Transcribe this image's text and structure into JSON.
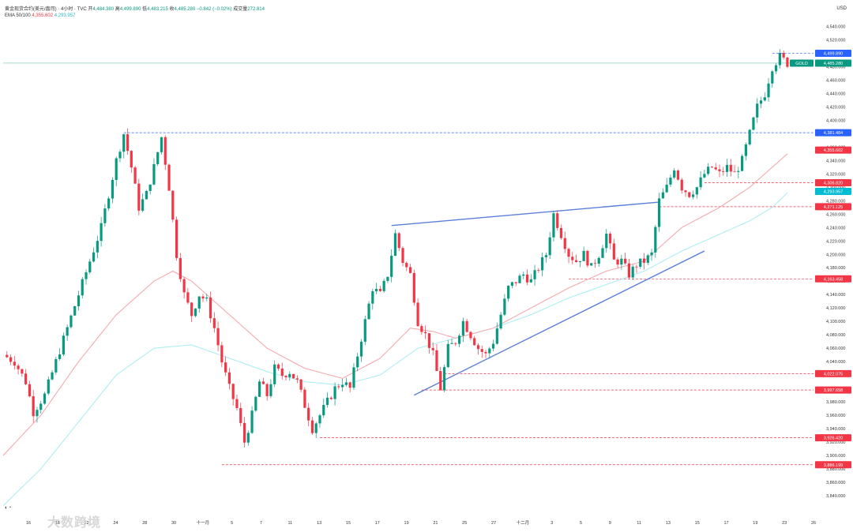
{
  "header": {
    "symbol": "黄金现货合约(美元/盎司) · 4小时 · TVC",
    "open_label": "开",
    "open": "4,484.380",
    "high_label": "高",
    "high": "4,499.890",
    "low_label": "低",
    "low": "4,483.215",
    "close_label": "收",
    "close": "4,485.280",
    "change": "−0.842 (−0.02%)",
    "volume_label": "成交量",
    "volume": "272.814",
    "ema_label": "EMA 50/100",
    "ema50": "4,355.602",
    "ema100": "4,293.957"
  },
  "axis_currency": "USD",
  "watermark": "大数跨境",
  "chart_data": {
    "type": "candlestick",
    "timeframe": "4h",
    "ylim": [
      3820,
      4550
    ],
    "x_tick_labels": [
      "16",
      "18",
      "22",
      "24",
      "28",
      "30",
      "十一月",
      "5",
      "7",
      "11",
      "13",
      "15",
      "17",
      "19",
      "21",
      "25",
      "27",
      "十二月",
      "3",
      "5",
      "9",
      "11",
      "13",
      "15",
      "17",
      "19",
      "23",
      "26"
    ],
    "y_tick_labels": [
      "4,540.000",
      "4,520.000",
      "4,500.000",
      "4,480.000",
      "4,460.000",
      "4,440.000",
      "4,420.000",
      "4,400.000",
      "4,380.000",
      "4,360.000",
      "4,340.000",
      "4,320.000",
      "4,300.000",
      "4,280.000",
      "4,260.000",
      "4,240.000",
      "4,220.000",
      "4,200.000",
      "4,180.000",
      "4,160.000",
      "4,140.000",
      "4,120.000",
      "4,100.000",
      "4,080.000",
      "4,060.000",
      "4,040.000",
      "4,020.000",
      "4,000.000",
      "3,980.000",
      "3,960.000",
      "3,940.000",
      "3,920.000",
      "3,900.000",
      "3,880.000",
      "3,860.000",
      "3,840.000"
    ],
    "close_path": [
      [
        0,
        4050
      ],
      [
        3,
        4040
      ],
      [
        6,
        4010
      ],
      [
        8,
        3965
      ],
      [
        11,
        3990
      ],
      [
        14,
        4040
      ],
      [
        17,
        4090
      ],
      [
        20,
        4140
      ],
      [
        23,
        4190
      ],
      [
        26,
        4240
      ],
      [
        28,
        4290
      ],
      [
        30,
        4340
      ],
      [
        32,
        4380
      ],
      [
        34,
        4330
      ],
      [
        36,
        4270
      ],
      [
        38,
        4290
      ],
      [
        40,
        4330
      ],
      [
        42,
        4375
      ],
      [
        44,
        4300
      ],
      [
        46,
        4200
      ],
      [
        48,
        4140
      ],
      [
        50,
        4110
      ],
      [
        52,
        4140
      ],
      [
        54,
        4130
      ],
      [
        56,
        4090
      ],
      [
        58,
        4040
      ],
      [
        60,
        4000
      ],
      [
        62,
        3970
      ],
      [
        64,
        3920
      ],
      [
        66,
        3960
      ],
      [
        68,
        4010
      ],
      [
        70,
        3990
      ],
      [
        72,
        4030
      ],
      [
        74,
        4020
      ],
      [
        76,
        4025
      ],
      [
        78,
        4010
      ],
      [
        80,
        3975
      ],
      [
        82,
        3940
      ],
      [
        84,
        3960
      ],
      [
        86,
        3980
      ],
      [
        88,
        4000
      ],
      [
        90,
        4010
      ],
      [
        92,
        4000
      ],
      [
        94,
        4050
      ],
      [
        96,
        4100
      ],
      [
        98,
        4150
      ],
      [
        100,
        4140
      ],
      [
        102,
        4170
      ],
      [
        104,
        4230
      ],
      [
        106,
        4190
      ],
      [
        108,
        4170
      ],
      [
        110,
        4100
      ],
      [
        112,
        4080
      ],
      [
        114,
        4050
      ],
      [
        116,
        4000
      ],
      [
        118,
        4060
      ],
      [
        120,
        4070
      ],
      [
        122,
        4100
      ],
      [
        124,
        4080
      ],
      [
        126,
        4060
      ],
      [
        128,
        4050
      ],
      [
        130,
        4070
      ],
      [
        132,
        4110
      ],
      [
        134,
        4150
      ],
      [
        136,
        4160
      ],
      [
        138,
        4170
      ],
      [
        140,
        4160
      ],
      [
        142,
        4180
      ],
      [
        144,
        4200
      ],
      [
        146,
        4260
      ],
      [
        148,
        4230
      ],
      [
        150,
        4200
      ],
      [
        152,
        4190
      ],
      [
        154,
        4200
      ],
      [
        156,
        4180
      ],
      [
        158,
        4200
      ],
      [
        160,
        4230
      ],
      [
        162,
        4190
      ],
      [
        164,
        4190
      ],
      [
        166,
        4170
      ],
      [
        168,
        4185
      ],
      [
        170,
        4190
      ],
      [
        172,
        4200
      ],
      [
        174,
        4280
      ],
      [
        176,
        4300
      ],
      [
        178,
        4330
      ],
      [
        180,
        4300
      ],
      [
        182,
        4290
      ],
      [
        184,
        4300
      ],
      [
        186,
        4320
      ],
      [
        188,
        4330
      ],
      [
        190,
        4320
      ],
      [
        192,
        4330
      ],
      [
        194,
        4320
      ],
      [
        196,
        4340
      ],
      [
        198,
        4380
      ],
      [
        200,
        4420
      ],
      [
        202,
        4440
      ],
      [
        204,
        4480
      ],
      [
        206,
        4495
      ],
      [
        208,
        4485
      ]
    ],
    "ema50_path": [
      [
        0,
        3900
      ],
      [
        10,
        3960
      ],
      [
        20,
        4040
      ],
      [
        30,
        4110
      ],
      [
        40,
        4160
      ],
      [
        45,
        4175
      ],
      [
        50,
        4160
      ],
      [
        60,
        4110
      ],
      [
        70,
        4060
      ],
      [
        80,
        4030
      ],
      [
        90,
        4015
      ],
      [
        100,
        4045
      ],
      [
        108,
        4090
      ],
      [
        114,
        4085
      ],
      [
        120,
        4075
      ],
      [
        130,
        4090
      ],
      [
        140,
        4120
      ],
      [
        150,
        4150
      ],
      [
        160,
        4175
      ],
      [
        170,
        4190
      ],
      [
        180,
        4240
      ],
      [
        190,
        4270
      ],
      [
        198,
        4300
      ],
      [
        204,
        4330
      ],
      [
        208,
        4350
      ]
    ],
    "ema100_path": [
      [
        0,
        3825
      ],
      [
        10,
        3880
      ],
      [
        20,
        3950
      ],
      [
        30,
        4020
      ],
      [
        40,
        4060
      ],
      [
        50,
        4065
      ],
      [
        60,
        4045
      ],
      [
        70,
        4025
      ],
      [
        80,
        4010
      ],
      [
        90,
        4005
      ],
      [
        100,
        4020
      ],
      [
        110,
        4060
      ],
      [
        120,
        4075
      ],
      [
        130,
        4090
      ],
      [
        140,
        4110
      ],
      [
        150,
        4135
      ],
      [
        160,
        4155
      ],
      [
        170,
        4175
      ],
      [
        180,
        4205
      ],
      [
        190,
        4230
      ],
      [
        198,
        4250
      ],
      [
        204,
        4270
      ],
      [
        208,
        4292
      ]
    ],
    "price_labels": [
      {
        "text": "4,499.890",
        "value": 4499.89,
        "color": "#2962ff"
      },
      {
        "text": "GOLD",
        "value": 4485.28,
        "color": "#089981"
      },
      {
        "text": "4,485.280",
        "value": 4485.28,
        "color": "#089981"
      },
      {
        "text": "4,381.484",
        "value": 4381.484,
        "color": "#2962ff"
      },
      {
        "text": "4,355.602",
        "value": 4355.602,
        "color": "#f23645"
      },
      {
        "text": "4,306.820",
        "value": 4306.82,
        "color": "#f23645"
      },
      {
        "text": "4,293.957",
        "value": 4293.957,
        "color": "#00bcd4"
      },
      {
        "text": "4,271.125",
        "value": 4271.125,
        "color": "#f23645"
      },
      {
        "text": "4,163.458",
        "value": 4163.458,
        "color": "#f23645"
      },
      {
        "text": "4,022.075",
        "value": 4022.075,
        "color": "#f23645"
      },
      {
        "text": "3,997.658",
        "value": 3997.658,
        "color": "#f23645"
      },
      {
        "text": "3,926.420",
        "value": 3926.42,
        "color": "#f23645"
      },
      {
        "text": "3,886.199",
        "value": 3886.199,
        "color": "#f23645"
      }
    ],
    "hlines": [
      {
        "value": 4381.484,
        "from": 32,
        "color": "#2962ff"
      },
      {
        "value": 4306.82,
        "from": 186,
        "color": "#f23645"
      },
      {
        "value": 4271.125,
        "from": 174,
        "color": "#f23645"
      },
      {
        "value": 4163.458,
        "from": 150,
        "color": "#f23645"
      },
      {
        "value": 4022.075,
        "from": 117,
        "color": "#f23645"
      },
      {
        "value": 3997.658,
        "from": 111,
        "color": "#f23645"
      },
      {
        "value": 3926.42,
        "from": 84,
        "color": "#f23645"
      },
      {
        "value": 3886.199,
        "from": 58,
        "color": "#f23645"
      },
      {
        "value": 4499.89,
        "from": 204,
        "color": "#2962ff"
      }
    ],
    "trendlines": [
      {
        "x1": 103,
        "y1": 4243,
        "x2": 174,
        "y2": 4278,
        "color": "#5b7fdb"
      },
      {
        "x1": 109,
        "y1": 3990,
        "x2": 186,
        "y2": 4205,
        "color": "#5b7fdb"
      }
    ]
  }
}
